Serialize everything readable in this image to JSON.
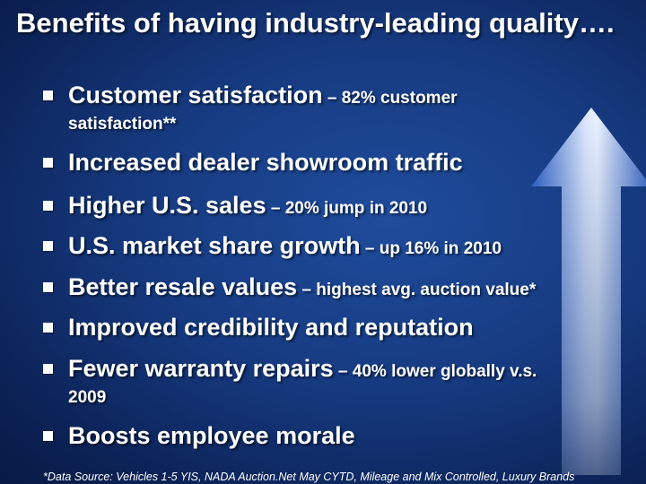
{
  "slide": {
    "title": "Benefits of having industry-leading quality….",
    "bullets": [
      {
        "main": "Customer satisfaction",
        "detail": " – 82% customer",
        "continuation": "satisfaction**"
      },
      {
        "main": "Increased dealer showroom traffic",
        "detail": "",
        "continuation": ""
      },
      {
        "main": "Higher U.S. sales",
        "detail": " – 20% jump in 2010",
        "continuation": ""
      },
      {
        "main": "U.S. market share growth",
        "detail": " – up 16% in 2010",
        "continuation": ""
      },
      {
        "main": "Better resale values",
        "detail": " – highest avg. auction value*",
        "continuation": ""
      },
      {
        "main": "Improved credibility and reputation",
        "detail": "",
        "continuation": ""
      },
      {
        "main": "Fewer warranty repairs",
        "detail": " – 40% lower globally v.s.",
        "continuation": "2009"
      },
      {
        "main": "Boosts employee morale",
        "detail": "",
        "continuation": ""
      }
    ],
    "footnote": "*Data Source:  Vehicles 1-5 YIS, NADA Auction.Net May CYTD, Mileage and Mix Controlled, Luxury Brands",
    "colors": {
      "text": "#ffffff",
      "arrow_light": "#e6f0ff",
      "arrow_dark": "#3f78d6"
    },
    "icons": {
      "bullet": "square-bullet-icon",
      "arrow": "up-arrow-icon"
    }
  }
}
